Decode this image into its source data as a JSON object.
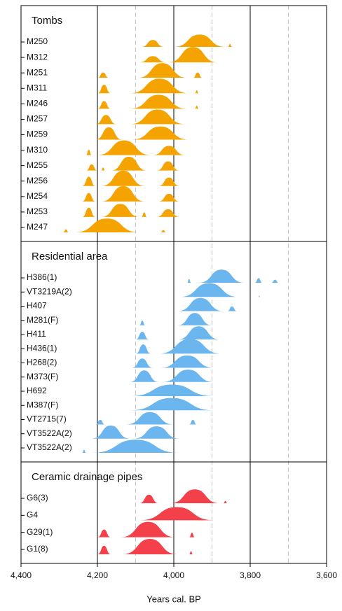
{
  "chart_data": {
    "type": "ridgeline",
    "xlabel": "Years cal. BP",
    "xlim": [
      4400,
      3600
    ],
    "xticks": [
      {
        "value": 4400,
        "label": "4,400"
      },
      {
        "value": 4200,
        "label": "4,200"
      },
      {
        "value": 4000,
        "label": "4,000"
      },
      {
        "value": 3800,
        "label": "3,800"
      },
      {
        "value": 3600,
        "label": "3,600"
      }
    ],
    "grid": true,
    "dashed_lines": [
      4100,
      3900,
      3700
    ],
    "groups": [
      {
        "name": "Tombs",
        "color": "#f5a300",
        "rows": [
          {
            "label": "M250",
            "blobs": [
              [
                4085,
                4025,
                0.45
              ],
              [
                4000,
                3865,
                0.8
              ],
              [
                3858,
                3848,
                0.2
              ]
            ]
          },
          {
            "label": "M312",
            "blobs": [
              [
                4090,
                4020,
                0.4
              ],
              [
                4015,
                3885,
                1
              ]
            ]
          },
          {
            "label": "M251",
            "blobs": [
              [
                4200,
                4170,
                0.35
              ],
              [
                4095,
                3965,
                0.95
              ],
              [
                3950,
                3925,
                0.35
              ]
            ]
          },
          {
            "label": "M311",
            "blobs": [
              [
                4200,
                4165,
                0.55
              ],
              [
                4115,
                3960,
                0.95
              ],
              [
                3945,
                3935,
                0.2
              ]
            ]
          },
          {
            "label": "M246",
            "blobs": [
              [
                4200,
                4165,
                0.5
              ],
              [
                4115,
                3965,
                0.9
              ],
              [
                3945,
                3935,
                0.2
              ]
            ]
          },
          {
            "label": "M257",
            "blobs": [
              [
                4205,
                4150,
                0.6
              ],
              [
                4115,
                3970,
                0.95
              ]
            ]
          },
          {
            "label": "M259",
            "blobs": [
              [
                4205,
                4135,
                0.8
              ],
              [
                4110,
                3960,
                0.85
              ]
            ]
          },
          {
            "label": "M310",
            "blobs": [
              [
                4230,
                4215,
                0.35
              ],
              [
                4200,
                4060,
                0.95
              ],
              [
                4055,
                3970,
                0.6
              ]
            ]
          },
          {
            "label": "M255",
            "blobs": [
              [
                4230,
                4200,
                0.4
              ],
              [
                4190,
                4180,
                0.2
              ],
              [
                4165,
                4070,
                0.9
              ],
              [
                4045,
                3985,
                0.6
              ]
            ]
          },
          {
            "label": "M256",
            "blobs": [
              [
                4240,
                4205,
                0.6
              ],
              [
                4190,
                4075,
                1
              ],
              [
                4040,
                3985,
                0.55
              ]
            ]
          },
          {
            "label": "M254",
            "blobs": [
              [
                4240,
                4205,
                0.55
              ],
              [
                4190,
                4075,
                1
              ],
              [
                4040,
                3985,
                0.5
              ]
            ]
          },
          {
            "label": "M253",
            "blobs": [
              [
                4240,
                4205,
                0.6
              ],
              [
                4190,
                4090,
                0.85
              ],
              [
                4085,
                4070,
                0.3
              ],
              [
                4045,
                3985,
                0.5
              ]
            ]
          },
          {
            "label": "M247",
            "blobs": [
              [
                4290,
                4275,
                0.2
              ],
              [
                4260,
                4090,
                0.9
              ],
              [
                4035,
                4020,
                0.15
              ]
            ]
          }
        ]
      },
      {
        "name": "Residential area",
        "color": "#6cb6f0",
        "rows": [
          {
            "label": "H386(1)",
            "blobs": [
              [
                3965,
                3955,
                0.25
              ],
              [
                3935,
                3815,
                0.85
              ],
              [
                3788,
                3768,
                0.3
              ],
              [
                3745,
                3725,
                0.2
              ]
            ]
          },
          {
            "label": "VT3219A(2)",
            "blobs": [
              [
                3985,
                3830,
                0.9
              ],
              [
                3778,
                3774,
                0.1
              ]
            ]
          },
          {
            "label": "H407",
            "blobs": [
              [
                3990,
                3870,
                0.85
              ],
              [
                3860,
                3835,
                0.3
              ]
            ]
          },
          {
            "label": "M281(F)",
            "blobs": [
              [
                4090,
                4075,
                0.3
              ],
              [
                3990,
                3900,
                0.8
              ]
            ]
          },
          {
            "label": "H411",
            "blobs": [
              [
                4100,
                4065,
                0.5
              ],
              [
                3990,
                3880,
                0.85
              ]
            ]
          },
          {
            "label": "H436(1)",
            "blobs": [
              [
                4100,
                4060,
                0.6
              ],
              [
                4040,
                3875,
                0.95
              ]
            ]
          },
          {
            "label": "H268(2)",
            "blobs": [
              [
                4110,
                4055,
                0.6
              ],
              [
                4035,
                3895,
                0.8
              ]
            ]
          },
          {
            "label": "M373(F)",
            "blobs": [
              [
                4115,
                4040,
                0.75
              ],
              [
                4030,
                3895,
                0.8
              ]
            ]
          },
          {
            "label": "H692",
            "blobs": [
              [
                4115,
                3895,
                0.75
              ]
            ]
          },
          {
            "label": "M387(F)",
            "blobs": [
              [
                4115,
                3895,
                0.8
              ]
            ]
          },
          {
            "label": "VT2715(7)",
            "blobs": [
              [
                4205,
                4180,
                0.3
              ],
              [
                4125,
                4000,
                0.8
              ],
              [
                3960,
                3940,
                0.3
              ]
            ]
          },
          {
            "label": "VT3522A(2)",
            "blobs": [
              [
                4215,
                4115,
                0.85
              ],
              [
                4105,
                3985,
                0.8
              ]
            ]
          },
          {
            "label": "VT3522A(2)",
            "blobs": [
              [
                4240,
                4230,
                0.2
              ],
              [
                4215,
                3985,
                0.85
              ]
            ]
          }
        ]
      },
      {
        "name": "Ceramic drainage pipes",
        "color": "#f4404a",
        "rows": [
          {
            "label": "G6(3)",
            "blobs": [
              [
                4090,
                4040,
                0.55
              ],
              [
                4010,
                3880,
                0.9
              ],
              [
                3870,
                3860,
                0.15
              ]
            ]
          },
          {
            "label": "G4",
            "blobs": [
              [
                4090,
                3895,
                0.85
              ]
            ]
          },
          {
            "label": "G29(1)",
            "blobs": [
              [
                4200,
                4165,
                0.5
              ],
              [
                4140,
                3995,
                1
              ],
              [
                3960,
                3945,
                0.3
              ]
            ]
          },
          {
            "label": "G1(8)",
            "blobs": [
              [
                4200,
                4165,
                0.55
              ],
              [
                4135,
                3990,
                1
              ],
              [
                3960,
                3950,
                0.2
              ]
            ]
          }
        ]
      }
    ]
  }
}
